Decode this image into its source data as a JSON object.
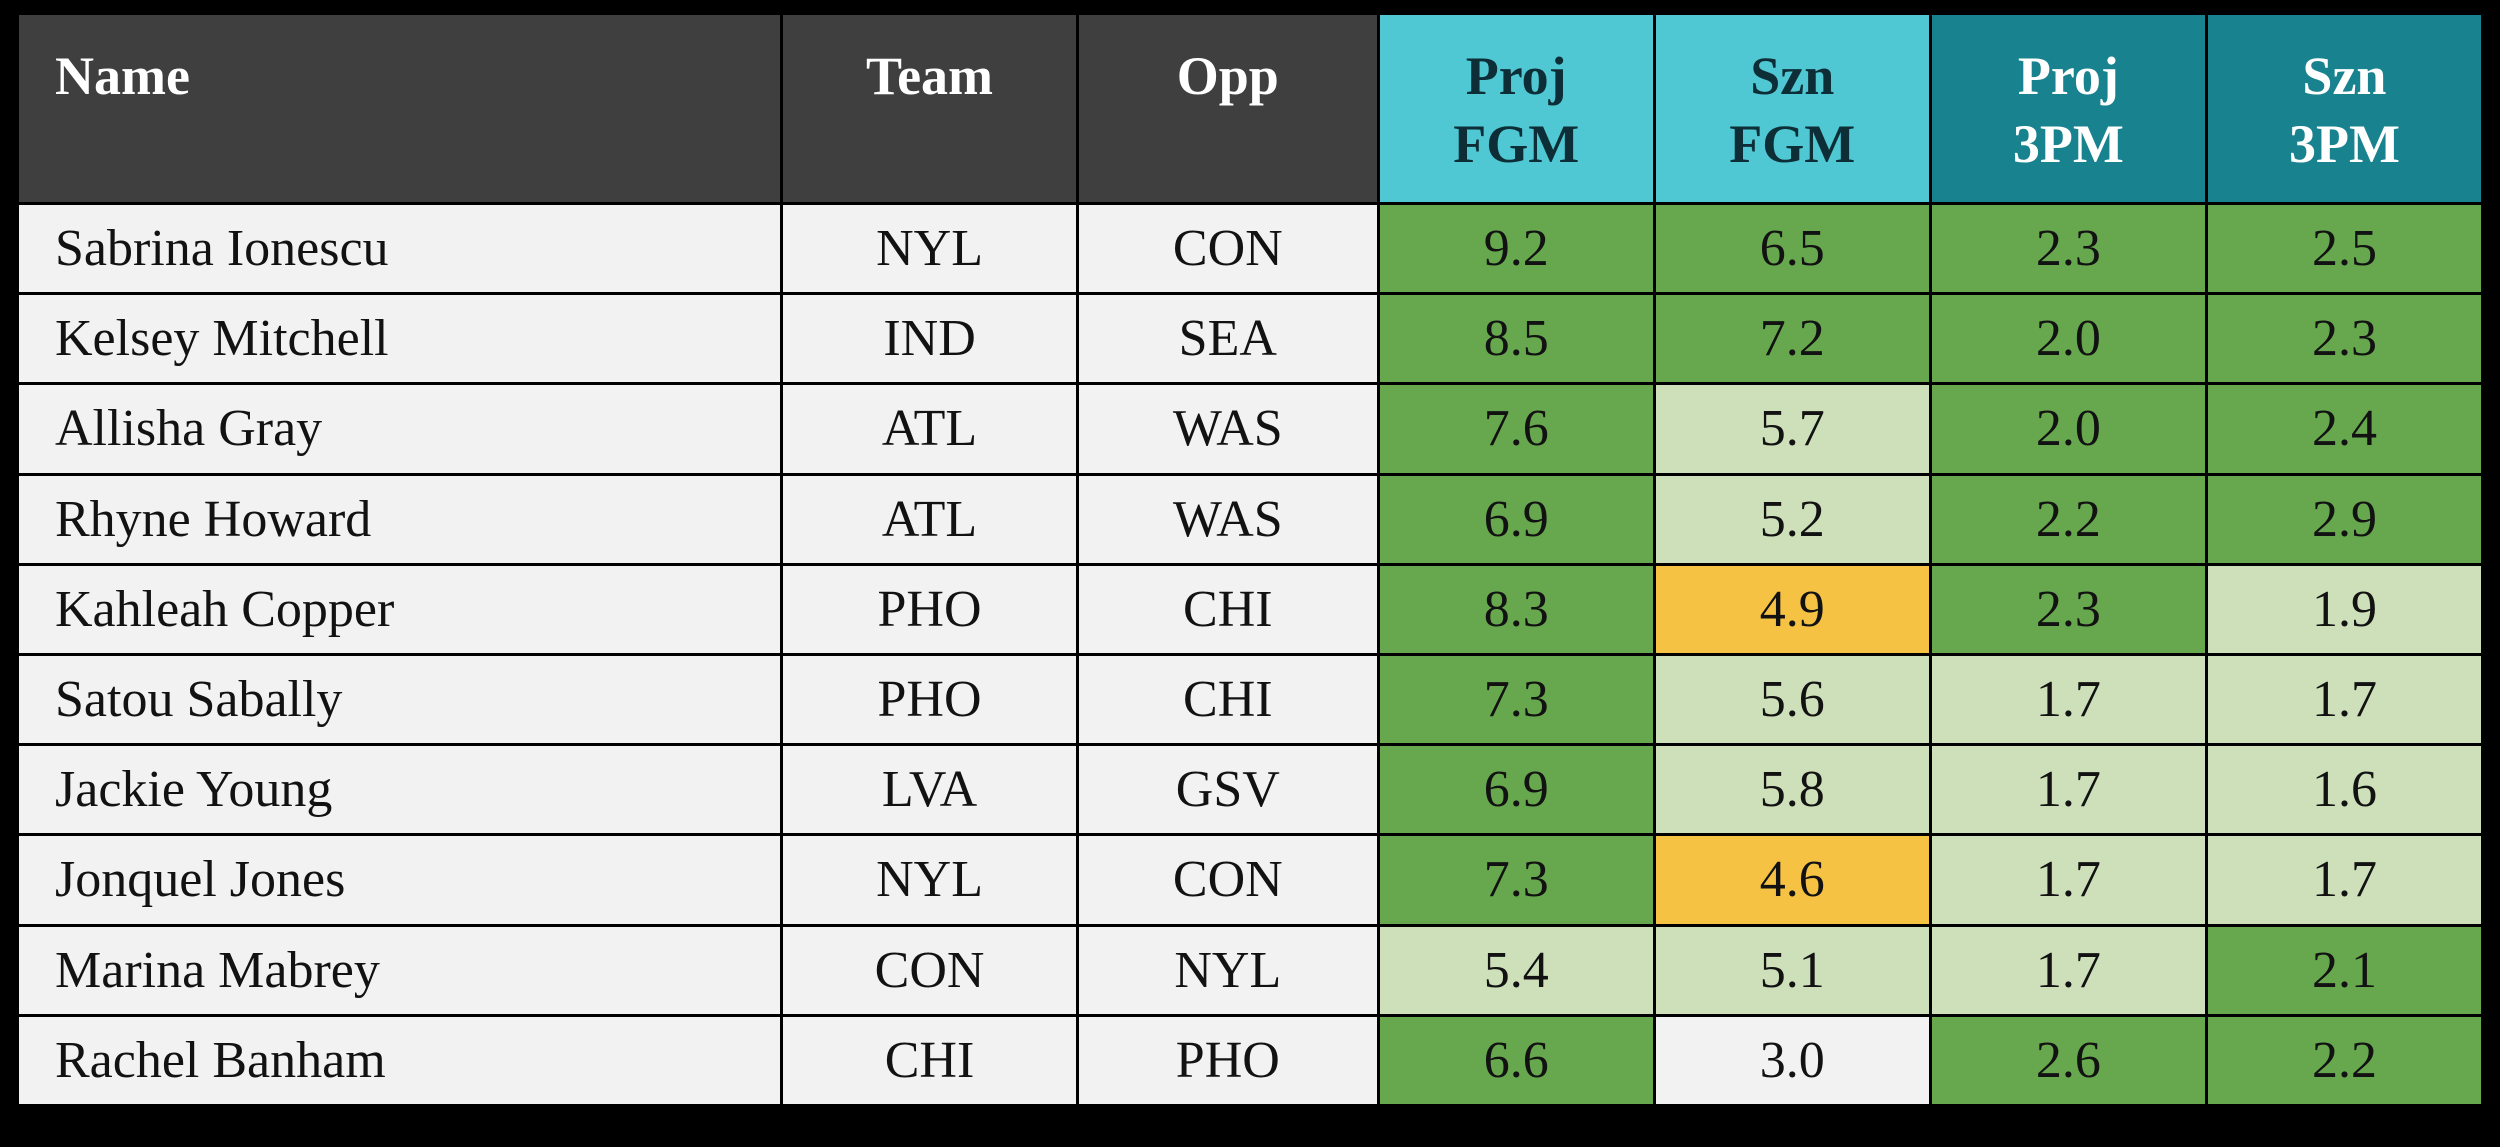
{
  "colors": {
    "header_dark": "#3f3f3f",
    "header_cyan": "#4fc8d4",
    "header_teal": "#18828f",
    "green": "#67a84e",
    "light_green": "#cde0ba",
    "yellow": "#f6c244",
    "neutral": "#f2f2f2"
  },
  "chart_data": {
    "type": "table",
    "columns": [
      {
        "key": "name",
        "label": "Name"
      },
      {
        "key": "team",
        "label": "Team"
      },
      {
        "key": "opp",
        "label": "Opp"
      },
      {
        "key": "proj-fgm",
        "label": "Proj\nFGM"
      },
      {
        "key": "szn-fgm",
        "label": "Szn\nFGM"
      },
      {
        "key": "proj-3pm",
        "label": "Proj\n3PM"
      },
      {
        "key": "szn-3pm",
        "label": "Szn\n3PM"
      }
    ],
    "rows": [
      {
        "name": "Sabrina Ionescu",
        "team": "NYL",
        "opp": "CON",
        "stats": [
          {
            "value": "9.2",
            "color": "green"
          },
          {
            "value": "6.5",
            "color": "green"
          },
          {
            "value": "2.3",
            "color": "green"
          },
          {
            "value": "2.5",
            "color": "green"
          }
        ]
      },
      {
        "name": "Kelsey Mitchell",
        "team": "IND",
        "opp": "SEA",
        "stats": [
          {
            "value": "8.5",
            "color": "green"
          },
          {
            "value": "7.2",
            "color": "green"
          },
          {
            "value": "2.0",
            "color": "green"
          },
          {
            "value": "2.3",
            "color": "green"
          }
        ]
      },
      {
        "name": "Allisha Gray",
        "team": "ATL",
        "opp": "WAS",
        "stats": [
          {
            "value": "7.6",
            "color": "green"
          },
          {
            "value": "5.7",
            "color": "light_green"
          },
          {
            "value": "2.0",
            "color": "green"
          },
          {
            "value": "2.4",
            "color": "green"
          }
        ]
      },
      {
        "name": "Rhyne Howard",
        "team": "ATL",
        "opp": "WAS",
        "stats": [
          {
            "value": "6.9",
            "color": "green"
          },
          {
            "value": "5.2",
            "color": "light_green"
          },
          {
            "value": "2.2",
            "color": "green"
          },
          {
            "value": "2.9",
            "color": "green"
          }
        ]
      },
      {
        "name": "Kahleah Copper",
        "team": "PHO",
        "opp": "CHI",
        "stats": [
          {
            "value": "8.3",
            "color": "green"
          },
          {
            "value": "4.9",
            "color": "yellow"
          },
          {
            "value": "2.3",
            "color": "green"
          },
          {
            "value": "1.9",
            "color": "light_green"
          }
        ]
      },
      {
        "name": "Satou Sabally",
        "team": "PHO",
        "opp": "CHI",
        "stats": [
          {
            "value": "7.3",
            "color": "green"
          },
          {
            "value": "5.6",
            "color": "light_green"
          },
          {
            "value": "1.7",
            "color": "light_green"
          },
          {
            "value": "1.7",
            "color": "light_green"
          }
        ]
      },
      {
        "name": "Jackie Young",
        "team": "LVA",
        "opp": "GSV",
        "stats": [
          {
            "value": "6.9",
            "color": "green"
          },
          {
            "value": "5.8",
            "color": "light_green"
          },
          {
            "value": "1.7",
            "color": "light_green"
          },
          {
            "value": "1.6",
            "color": "light_green"
          }
        ]
      },
      {
        "name": "Jonquel Jones",
        "team": "NYL",
        "opp": "CON",
        "stats": [
          {
            "value": "7.3",
            "color": "green"
          },
          {
            "value": "4.6",
            "color": "yellow"
          },
          {
            "value": "1.7",
            "color": "light_green"
          },
          {
            "value": "1.7",
            "color": "light_green"
          }
        ]
      },
      {
        "name": "Marina Mabrey",
        "team": "CON",
        "opp": "NYL",
        "stats": [
          {
            "value": "5.4",
            "color": "light_green"
          },
          {
            "value": "5.1",
            "color": "light_green"
          },
          {
            "value": "1.7",
            "color": "light_green"
          },
          {
            "value": "2.1",
            "color": "green"
          }
        ]
      },
      {
        "name": "Rachel Banham",
        "team": "CHI",
        "opp": "PHO",
        "stats": [
          {
            "value": "6.6",
            "color": "green"
          },
          {
            "value": "3.0",
            "color": "neutral"
          },
          {
            "value": "2.6",
            "color": "green"
          },
          {
            "value": "2.2",
            "color": "green"
          }
        ]
      }
    ]
  }
}
